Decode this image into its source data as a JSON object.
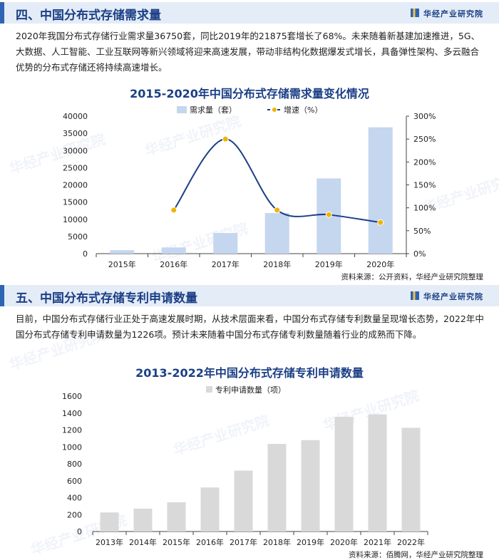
{
  "section1": {
    "title": "四、中国分布式存储需求量",
    "brand": "华经产业研究院",
    "paragraph": "2020年我国分布式存储行业需求量36750套，同比2019年的21875套增长了68%。未来随着新基建加速推进，5G、大数据、人工智能、工业互联网等新兴领域将迎来高速发展，带动非结构化数据爆发式增长，具备弹性架构、多云融合优势的分布式存储还将持续高速增长。",
    "source": "资料来源：公开资料，华经产业研究院整理"
  },
  "section2": {
    "title": "五、中国分布式存储专利申请数量",
    "brand": "华经产业研究院",
    "paragraph": "目前，中国分布式存储行业正处于高速发展时期，从技术层面来看，中国分布式存储专利数量呈现增长态势，2022年中国分布式存储专利申请数量为1226项。预计未来随着中国分布式存储专利数量随着行业的成熟而下降。",
    "source": "资料来源：佰腾网，华经产业研究院整理"
  },
  "watermark": "华经产业研究院",
  "chart_data": [
    {
      "type": "bar",
      "title": "2015-2020年中国分布式存储需求量变化情况",
      "categories": [
        "2015年",
        "2016年",
        "2017年",
        "2018年",
        "2019年",
        "2020年"
      ],
      "series": [
        {
          "name": "需求量（套）",
          "kind": "bar",
          "axis": "left",
          "values": [
            1000,
            1800,
            6000,
            11800,
            21875,
            36750
          ],
          "color": "#c5d6ef"
        },
        {
          "name": "增速（%）",
          "kind": "line",
          "axis": "right",
          "values": [
            null,
            95,
            250,
            95,
            85,
            68
          ],
          "color": "#1b3f86",
          "marker_color": "#f0b400"
        }
      ],
      "ylim_left": [
        0,
        40000
      ],
      "yticks_left": [
        "0",
        "5000",
        "10000",
        "15000",
        "20000",
        "25000",
        "30000",
        "35000",
        "40000"
      ],
      "ylim_right": [
        0,
        300
      ],
      "yticks_right": [
        "0%",
        "50%",
        "100%",
        "150%",
        "200%",
        "250%",
        "300%"
      ],
      "legend": "top-center",
      "grid": false
    },
    {
      "type": "bar",
      "title": "2013-2022年中国分布式存储专利申请数量",
      "categories": [
        "2013年",
        "2014年",
        "2015年",
        "2016年",
        "2017年",
        "2018年",
        "2019年",
        "2020年",
        "2021年",
        "2022年"
      ],
      "series": [
        {
          "name": "专利申请数量（项）",
          "values": [
            225,
            270,
            345,
            520,
            720,
            1035,
            1080,
            1355,
            1385,
            1226
          ],
          "color": "#d9d9d9"
        }
      ],
      "ylim": [
        0,
        1600
      ],
      "yticks": [
        "0",
        "200",
        "400",
        "600",
        "800",
        "1000",
        "1200",
        "1400",
        "1600"
      ],
      "legend": "top-center",
      "grid": false
    }
  ]
}
